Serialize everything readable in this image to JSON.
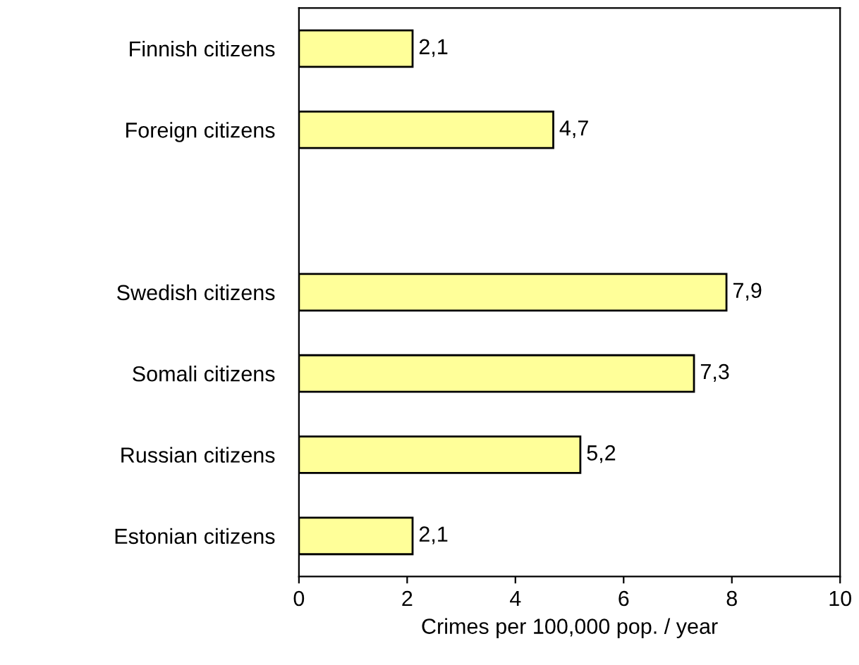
{
  "chart_data": {
    "type": "bar",
    "orientation": "horizontal",
    "xlabel": "Crimes per 100,000 pop. / year",
    "categories": [
      "Finnish citizens",
      "Foreign citizens",
      null,
      "Swedish citizens",
      "Somali citizens",
      "Russian citizens",
      "Estonian citizens"
    ],
    "values": [
      2.1,
      4.7,
      null,
      7.9,
      7.3,
      5.2,
      2.1
    ],
    "value_labels": [
      "2,1",
      "4,7",
      null,
      "7,9",
      "7,3",
      "5,2",
      "2,1"
    ],
    "color": "#ffff99",
    "xlim": [
      0,
      10
    ],
    "xticks": [
      0,
      2,
      4,
      6,
      8,
      10
    ],
    "grid": false,
    "legend": false
  }
}
